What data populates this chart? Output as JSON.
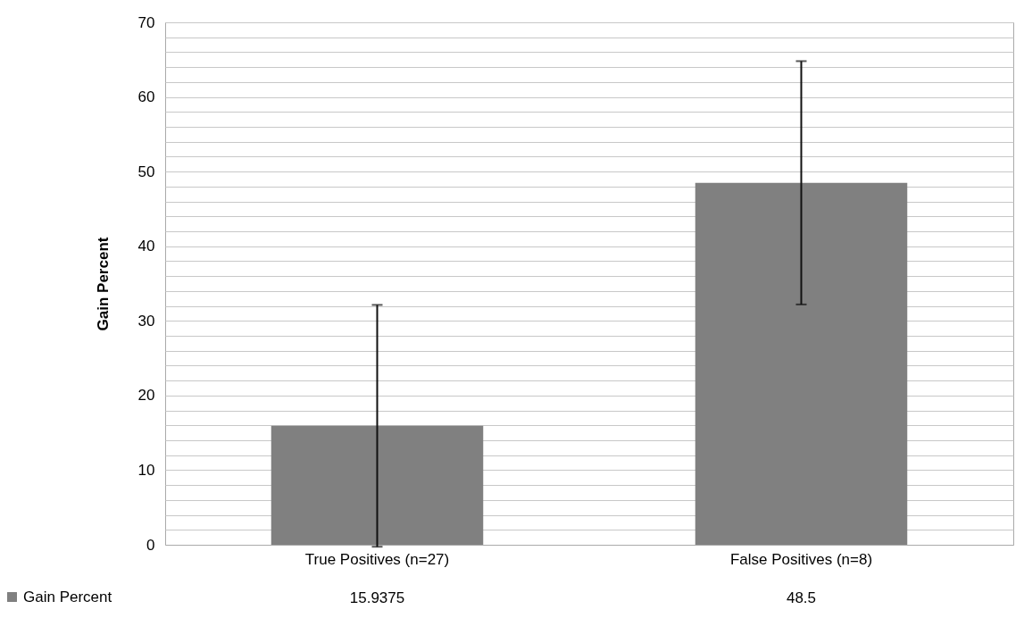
{
  "chart_data": {
    "type": "bar",
    "ylabel": "Gain Percent",
    "categories": [
      "True Positives (n=27)",
      "False Positives (n=8)"
    ],
    "series": [
      {
        "name": "Gain Percent",
        "color": "#808080",
        "values": [
          15.9375,
          48.5
        ],
        "errors": [
          16.2,
          16.3
        ]
      }
    ],
    "ylim": [
      0,
      70
    ],
    "yticks": [
      0,
      {
        "value": 2,
        "label": null
      },
      {
        "value": 4,
        "label": null
      },
      {
        "value": 6,
        "label": null
      },
      {
        "value": 8,
        "label": null
      },
      10,
      {
        "value": 12,
        "label": null
      },
      {
        "value": 14,
        "label": null
      },
      {
        "value": 16,
        "label": null
      },
      {
        "value": 18,
        "label": null
      },
      20,
      {
        "value": 22,
        "label": null
      },
      {
        "value": 24,
        "label": null
      },
      {
        "value": 26,
        "label": null
      },
      {
        "value": 28,
        "label": null
      },
      30,
      {
        "value": 32,
        "label": null
      },
      {
        "value": 34,
        "label": null
      },
      {
        "value": 36,
        "label": null
      },
      {
        "value": 38,
        "label": null
      },
      40,
      {
        "value": 42,
        "label": null
      },
      {
        "value": 44,
        "label": null
      },
      {
        "value": 46,
        "label": null
      },
      {
        "value": 48,
        "label": null
      },
      50,
      {
        "value": 52,
        "label": null
      },
      {
        "value": 54,
        "label": null
      },
      {
        "value": 56,
        "label": null
      },
      {
        "value": 58,
        "label": null
      },
      60,
      {
        "value": 62,
        "label": null
      },
      {
        "value": 64,
        "label": null
      },
      {
        "value": 66,
        "label": null
      },
      {
        "value": 68,
        "label": null
      },
      70
    ],
    "grid": true,
    "legend": "bottom left",
    "data_labels": true
  }
}
